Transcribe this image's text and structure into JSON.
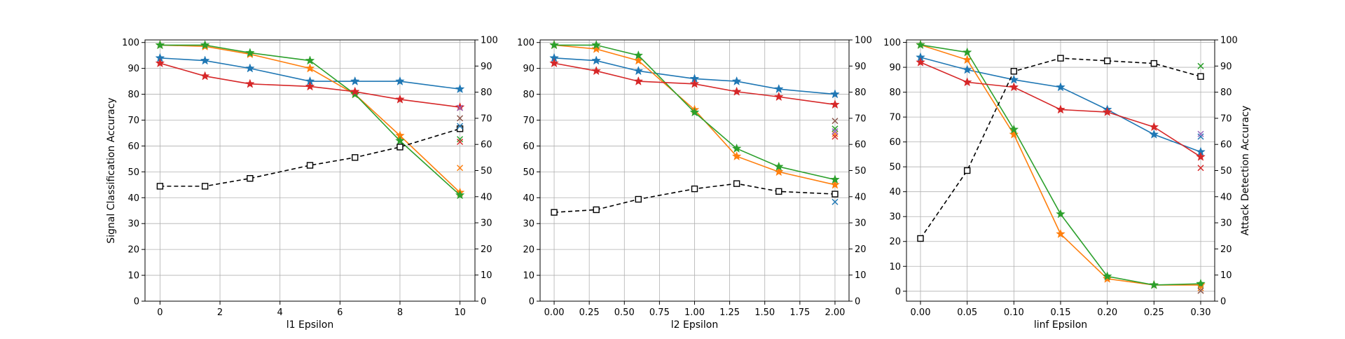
{
  "chart_data": [
    {
      "type": "line",
      "xlabel": "l1 Epsilon",
      "ylabel": "Signal Classification Accuracy",
      "ylabel_right": "",
      "xlim": [
        -0.5,
        10.5
      ],
      "ylim": [
        0,
        101
      ],
      "y2lim": [
        0,
        100
      ],
      "xticks": [
        0,
        2,
        4,
        6,
        8,
        10
      ],
      "xtick_labels": [
        "0",
        "2",
        "4",
        "6",
        "8",
        "10"
      ],
      "yticks": [
        0,
        10,
        20,
        30,
        40,
        50,
        60,
        70,
        80,
        90,
        100
      ],
      "ytick_labels": [
        "0",
        "10",
        "20",
        "30",
        "40",
        "50",
        "60",
        "70",
        "80",
        "90",
        "100"
      ],
      "y2ticks": [
        0,
        10,
        20,
        30,
        40,
        50,
        60,
        70,
        80,
        90,
        100
      ],
      "y2tick_labels": [
        "0",
        "10",
        "20",
        "30",
        "40",
        "50",
        "60",
        "70",
        "80",
        "90",
        "100"
      ],
      "grid": true,
      "series": [
        {
          "color": "#1f77b4",
          "marker": "star",
          "x": [
            0,
            1.5,
            3,
            5,
            6.5,
            8,
            10
          ],
          "values": [
            94,
            93,
            90,
            85,
            85,
            85,
            82
          ]
        },
        {
          "color": "#ff7f0e",
          "marker": "star",
          "x": [
            0,
            1.5,
            3,
            5,
            6.5,
            8,
            10
          ],
          "values": [
            99,
            98.5,
            95.5,
            90,
            80,
            64,
            42
          ]
        },
        {
          "color": "#2ca02c",
          "marker": "star",
          "x": [
            0,
            1.5,
            3,
            5,
            6.5,
            8,
            10
          ],
          "values": [
            99,
            99,
            96,
            93,
            80,
            62,
            41
          ]
        },
        {
          "color": "#d62728",
          "marker": "star",
          "x": [
            0,
            1.5,
            3,
            5,
            6.5,
            8,
            10
          ],
          "values": [
            92,
            87,
            84,
            83,
            81,
            78,
            75
          ]
        },
        {
          "color": "#000000",
          "marker": "square",
          "dashed": true,
          "axis": "right",
          "x": [
            0,
            1.5,
            3,
            5,
            6.5,
            8,
            10
          ],
          "values": [
            44,
            44,
            47,
            52,
            55,
            59,
            66
          ]
        }
      ],
      "x_markers": [
        {
          "color": "#1f77b4",
          "x": 10,
          "value": 67
        },
        {
          "color": "#ff7f0e",
          "x": 10,
          "value": 51
        },
        {
          "color": "#2ca02c",
          "x": 10,
          "value": 62
        },
        {
          "color": "#d62728",
          "x": 10,
          "value": 61
        },
        {
          "color": "#9467bd",
          "x": 10,
          "value": 74
        },
        {
          "color": "#8c564b",
          "x": 10,
          "value": 70
        }
      ]
    },
    {
      "type": "line",
      "xlabel": "l2 Epsilon",
      "ylabel": "",
      "ylabel_right": "",
      "xlim": [
        -0.1,
        2.1
      ],
      "ylim": [
        0,
        101
      ],
      "y2lim": [
        0,
        100
      ],
      "xticks": [
        0,
        0.25,
        0.5,
        0.75,
        1.0,
        1.25,
        1.5,
        1.75,
        2.0
      ],
      "xtick_labels": [
        "0.00",
        "0.25",
        "0.50",
        "0.75",
        "1.00",
        "1.25",
        "1.50",
        "1.75",
        "2.00"
      ],
      "yticks": [
        0,
        10,
        20,
        30,
        40,
        50,
        60,
        70,
        80,
        90,
        100
      ],
      "ytick_labels": [
        "0",
        "10",
        "20",
        "30",
        "40",
        "50",
        "60",
        "70",
        "80",
        "90",
        "100"
      ],
      "y2ticks": [
        0,
        10,
        20,
        30,
        40,
        50,
        60,
        70,
        80,
        90,
        100
      ],
      "y2tick_labels": [
        "0",
        "10",
        "20",
        "30",
        "40",
        "50",
        "60",
        "70",
        "80",
        "90",
        "100"
      ],
      "grid": true,
      "series": [
        {
          "color": "#1f77b4",
          "marker": "star",
          "x": [
            0,
            0.3,
            0.6,
            1.0,
            1.3,
            1.6,
            2.0
          ],
          "values": [
            94,
            93,
            89,
            86,
            85,
            82,
            80
          ]
        },
        {
          "color": "#ff7f0e",
          "marker": "star",
          "x": [
            0,
            0.3,
            0.6,
            1.0,
            1.3,
            1.6,
            2.0
          ],
          "values": [
            99,
            97.5,
            93,
            74,
            56,
            50,
            45
          ]
        },
        {
          "color": "#2ca02c",
          "marker": "star",
          "x": [
            0,
            0.3,
            0.6,
            1.0,
            1.3,
            1.6,
            2.0
          ],
          "values": [
            99,
            99,
            95,
            73,
            59,
            52,
            47
          ]
        },
        {
          "color": "#d62728",
          "marker": "star",
          "x": [
            0,
            0.3,
            0.6,
            1.0,
            1.3,
            1.6,
            2.0
          ],
          "values": [
            92,
            89,
            85,
            84,
            81,
            79,
            76
          ]
        },
        {
          "color": "#000000",
          "marker": "square",
          "dashed": true,
          "axis": "right",
          "x": [
            0,
            0.3,
            0.6,
            1.0,
            1.3,
            1.6,
            2.0
          ],
          "values": [
            34,
            35,
            39,
            43,
            45,
            42,
            41
          ]
        }
      ],
      "x_markers": [
        {
          "color": "#1f77b4",
          "x": 2.0,
          "value": 38
        },
        {
          "color": "#ff7f0e",
          "x": 2.0,
          "value": 64
        },
        {
          "color": "#2ca02c",
          "x": 2.0,
          "value": 66
        },
        {
          "color": "#d62728",
          "x": 2.0,
          "value": 63
        },
        {
          "color": "#9467bd",
          "x": 2.0,
          "value": 65
        },
        {
          "color": "#8c564b",
          "x": 2.0,
          "value": 69
        }
      ]
    },
    {
      "type": "line",
      "xlabel": "linf Epsilon",
      "ylabel": "",
      "ylabel_right": "Attack Detection Accuracy",
      "xlim": [
        -0.015,
        0.315
      ],
      "ylim": [
        -4,
        101
      ],
      "y2lim": [
        0,
        100
      ],
      "xticks": [
        0,
        0.05,
        0.1,
        0.15,
        0.2,
        0.25,
        0.3
      ],
      "xtick_labels": [
        "0.00",
        "0.05",
        "0.10",
        "0.15",
        "0.20",
        "0.25",
        "0.30"
      ],
      "yticks": [
        0,
        10,
        20,
        30,
        40,
        50,
        60,
        70,
        80,
        90,
        100
      ],
      "ytick_labels": [
        "0",
        "10",
        "20",
        "30",
        "40",
        "50",
        "60",
        "70",
        "80",
        "90",
        "100"
      ],
      "y2ticks": [
        0,
        10,
        20,
        30,
        40,
        50,
        60,
        70,
        80,
        90,
        100
      ],
      "y2tick_labels": [
        "0",
        "10",
        "20",
        "30",
        "40",
        "50",
        "60",
        "70",
        "80",
        "90",
        "100"
      ],
      "grid": true,
      "series": [
        {
          "color": "#1f77b4",
          "marker": "star",
          "x": [
            0,
            0.05,
            0.1,
            0.15,
            0.2,
            0.25,
            0.3
          ],
          "values": [
            94,
            89,
            85,
            82,
            73,
            63,
            56
          ]
        },
        {
          "color": "#ff7f0e",
          "marker": "star",
          "x": [
            0,
            0.05,
            0.1,
            0.15,
            0.2,
            0.25,
            0.3
          ],
          "values": [
            99,
            93,
            63,
            23,
            5,
            2.5,
            2.5
          ]
        },
        {
          "color": "#2ca02c",
          "marker": "star",
          "x": [
            0,
            0.05,
            0.1,
            0.15,
            0.2,
            0.25,
            0.3
          ],
          "values": [
            99,
            96,
            65,
            31,
            6,
            2.5,
            3
          ]
        },
        {
          "color": "#d62728",
          "marker": "star",
          "x": [
            0,
            0.05,
            0.1,
            0.15,
            0.2,
            0.25,
            0.3
          ],
          "values": [
            92,
            84,
            82,
            73,
            72,
            66,
            54
          ]
        },
        {
          "color": "#000000",
          "marker": "square",
          "dashed": true,
          "axis": "right",
          "x": [
            0,
            0.05,
            0.1,
            0.15,
            0.2,
            0.25,
            0.3
          ],
          "values": [
            24,
            50,
            88,
            93,
            92,
            91,
            86
          ]
        }
      ],
      "x_markers": [
        {
          "color": "#1f77b4",
          "x": 0.3,
          "value": 63
        },
        {
          "color": "#ff7f0e",
          "x": 0.3,
          "value": 5
        },
        {
          "color": "#2ca02c",
          "x": 0.3,
          "value": 90
        },
        {
          "color": "#d62728",
          "x": 0.3,
          "value": 51
        },
        {
          "color": "#9467bd",
          "x": 0.3,
          "value": 64
        },
        {
          "color": "#8c564b",
          "x": 0.3,
          "value": 4
        }
      ]
    }
  ]
}
